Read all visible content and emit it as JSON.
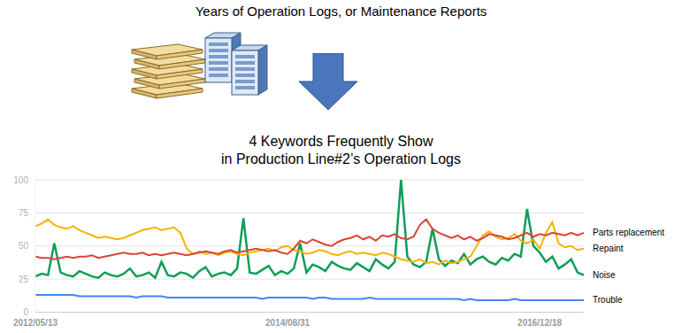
{
  "header": {
    "title": "Years of Operation Logs, or Maintenance Reports"
  },
  "chart_data": {
    "type": "line",
    "title": "4 Keywords Frequently Show\nin Production Line#2’s Operation Logs",
    "categories": [
      "2012/05/13",
      null,
      null,
      null,
      null,
      null,
      null,
      null,
      null,
      null,
      null,
      null,
      null,
      null,
      null,
      null,
      null,
      null,
      null,
      null,
      null,
      null,
      null,
      null,
      null,
      null,
      null,
      null,
      null,
      null,
      null,
      null,
      null,
      null,
      null,
      null,
      null,
      null,
      null,
      null,
      "2014/08/31",
      null,
      null,
      null,
      null,
      null,
      null,
      null,
      null,
      null,
      null,
      null,
      null,
      null,
      null,
      null,
      null,
      null,
      null,
      null,
      null,
      null,
      null,
      null,
      null,
      null,
      null,
      null,
      null,
      null,
      null,
      null,
      null,
      null,
      null,
      null,
      null,
      null,
      null,
      null,
      "2016/12/18",
      null,
      null,
      null,
      null,
      null,
      null,
      null
    ],
    "series": [
      {
        "name": "Parts replacement",
        "color": "#db4437",
        "values": [
          42,
          41,
          41,
          40,
          41,
          42,
          41,
          42,
          42,
          43,
          41,
          42,
          43,
          44,
          45,
          44,
          44,
          45,
          43,
          44,
          43,
          44,
          45,
          44,
          43,
          44,
          45,
          46,
          45,
          44,
          46,
          47,
          45,
          46,
          47,
          48,
          47,
          46,
          47,
          45,
          44,
          48,
          54,
          52,
          55,
          53,
          51,
          50,
          53,
          55,
          56,
          58,
          55,
          57,
          54,
          58,
          57,
          59,
          56,
          55,
          57,
          66,
          70,
          63,
          60,
          58,
          56,
          58,
          55,
          57,
          54,
          56,
          59,
          58,
          57,
          55,
          56,
          58,
          60,
          57,
          59,
          58,
          60,
          59,
          58,
          60,
          58,
          60
        ]
      },
      {
        "name": "Repaint",
        "color": "#f4b400",
        "values": [
          65,
          67,
          70,
          66,
          64,
          63,
          65,
          62,
          60,
          58,
          56,
          57,
          56,
          55,
          56,
          58,
          60,
          62,
          63,
          64,
          62,
          63,
          64,
          60,
          48,
          44,
          46,
          44,
          45,
          43,
          45,
          46,
          44,
          43,
          45,
          46,
          47,
          48,
          46,
          49,
          50,
          47,
          46,
          44,
          45,
          47,
          46,
          44,
          43,
          45,
          46,
          44,
          45,
          44,
          43,
          45,
          44,
          42,
          40,
          39,
          38,
          40,
          37,
          38,
          36,
          39,
          37,
          38,
          40,
          42,
          50,
          58,
          61,
          57,
          55,
          56,
          59,
          54,
          52,
          55,
          48,
          60,
          68,
          52,
          49,
          50,
          47,
          48
        ]
      },
      {
        "name": "Noise",
        "color": "#0f9d58",
        "values": [
          27,
          29,
          28,
          52,
          30,
          28,
          27,
          31,
          29,
          27,
          26,
          30,
          28,
          27,
          29,
          33,
          27,
          28,
          30,
          26,
          38,
          28,
          27,
          30,
          29,
          26,
          31,
          34,
          27,
          29,
          30,
          28,
          33,
          71,
          30,
          29,
          32,
          35,
          28,
          31,
          29,
          33,
          52,
          30,
          36,
          34,
          31,
          38,
          35,
          33,
          32,
          37,
          34,
          31,
          40,
          36,
          33,
          38,
          100,
          42,
          36,
          34,
          38,
          63,
          40,
          35,
          39,
          37,
          44,
          36,
          40,
          42,
          38,
          36,
          41,
          39,
          44,
          42,
          78,
          50,
          45,
          38,
          42,
          33,
          36,
          40,
          30,
          28
        ]
      },
      {
        "name": "Trouble",
        "color": "#4285f4",
        "values": [
          13,
          13,
          13,
          13,
          13,
          13,
          13,
          12,
          12,
          12,
          12,
          12,
          12,
          12,
          12,
          12,
          11,
          12,
          12,
          12,
          12,
          11,
          11,
          11,
          11,
          11,
          11,
          11,
          11,
          11,
          11,
          11,
          11,
          11,
          11,
          11,
          10,
          11,
          11,
          11,
          11,
          11,
          11,
          11,
          10,
          11,
          11,
          10,
          10,
          10,
          10,
          10,
          10,
          11,
          10,
          10,
          10,
          10,
          10,
          10,
          10,
          10,
          10,
          10,
          10,
          10,
          10,
          10,
          9,
          10,
          9,
          9,
          9,
          9,
          9,
          9,
          10,
          9,
          9,
          9,
          9,
          9,
          9,
          9,
          9,
          9,
          9,
          9
        ]
      }
    ],
    "ylim": [
      0,
      100
    ],
    "yticks": [
      0,
      25,
      50,
      75,
      100
    ],
    "grid": true
  }
}
